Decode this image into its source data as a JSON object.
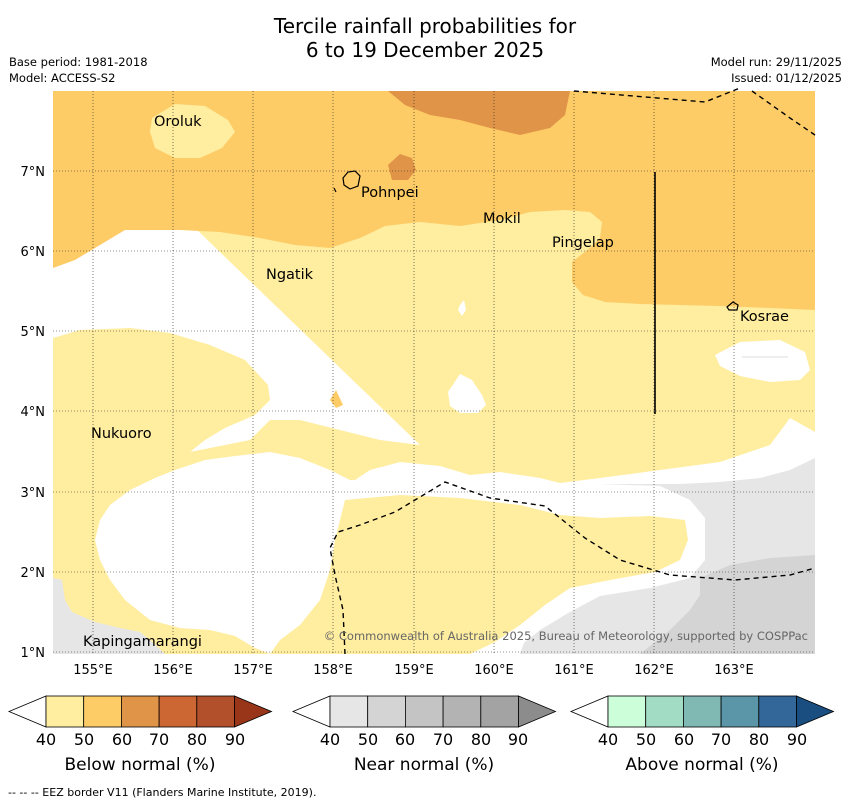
{
  "header": {
    "title_line1": "Tercile rainfall probabilities for",
    "title_line2": "6 to 19 December 2025",
    "base_period": "Base period: 1981-2018",
    "model": "Model: ACCESS-S2",
    "model_run": "Model run: 29/11/2025",
    "issued": "Issued: 01/12/2025"
  },
  "map": {
    "lon_ticks": [
      "155°E",
      "156°E",
      "157°E",
      "158°E",
      "159°E",
      "160°E",
      "161°E",
      "162°E",
      "163°E"
    ],
    "lat_ticks": [
      "7°N",
      "6°N",
      "5°N",
      "4°N",
      "3°N",
      "2°N",
      "1°N"
    ],
    "places": [
      {
        "name": "Oroluk"
      },
      {
        "name": "Pohnpei"
      },
      {
        "name": "Mokil"
      },
      {
        "name": "Pingelap"
      },
      {
        "name": "Ngatik"
      },
      {
        "name": "Kosrae"
      },
      {
        "name": "Nukuoro"
      },
      {
        "name": "Kapingamarangi"
      }
    ],
    "copyright": "© Commonwealth of Australia 2025, Bureau of Meteorology, supported by COSPPac"
  },
  "legend": {
    "ticks": [
      "40",
      "50",
      "60",
      "70",
      "80",
      "90"
    ],
    "below": {
      "label": "Below normal (%)",
      "colors": [
        "#ffffff",
        "#ffeda0",
        "#fecc66",
        "#e09447",
        "#cc6633",
        "#b3502c",
        "#99361a"
      ]
    },
    "near": {
      "label": "Near normal (%)",
      "colors": [
        "#ffffff",
        "#e6e6e6",
        "#d4d4d4",
        "#c4c4c4",
        "#b3b3b3",
        "#a3a3a3",
        "#8c8c8c"
      ]
    },
    "above": {
      "label": "Above normal (%)",
      "colors": [
        "#ffffff",
        "#ccffd9",
        "#a3dcc4",
        "#80b8b3",
        "#5a95a8",
        "#336699",
        "#1a4d80"
      ]
    }
  },
  "footer": {
    "eez_note": "--  --  -- EEZ border V11 (Flanders Marine Institute, 2019)."
  }
}
